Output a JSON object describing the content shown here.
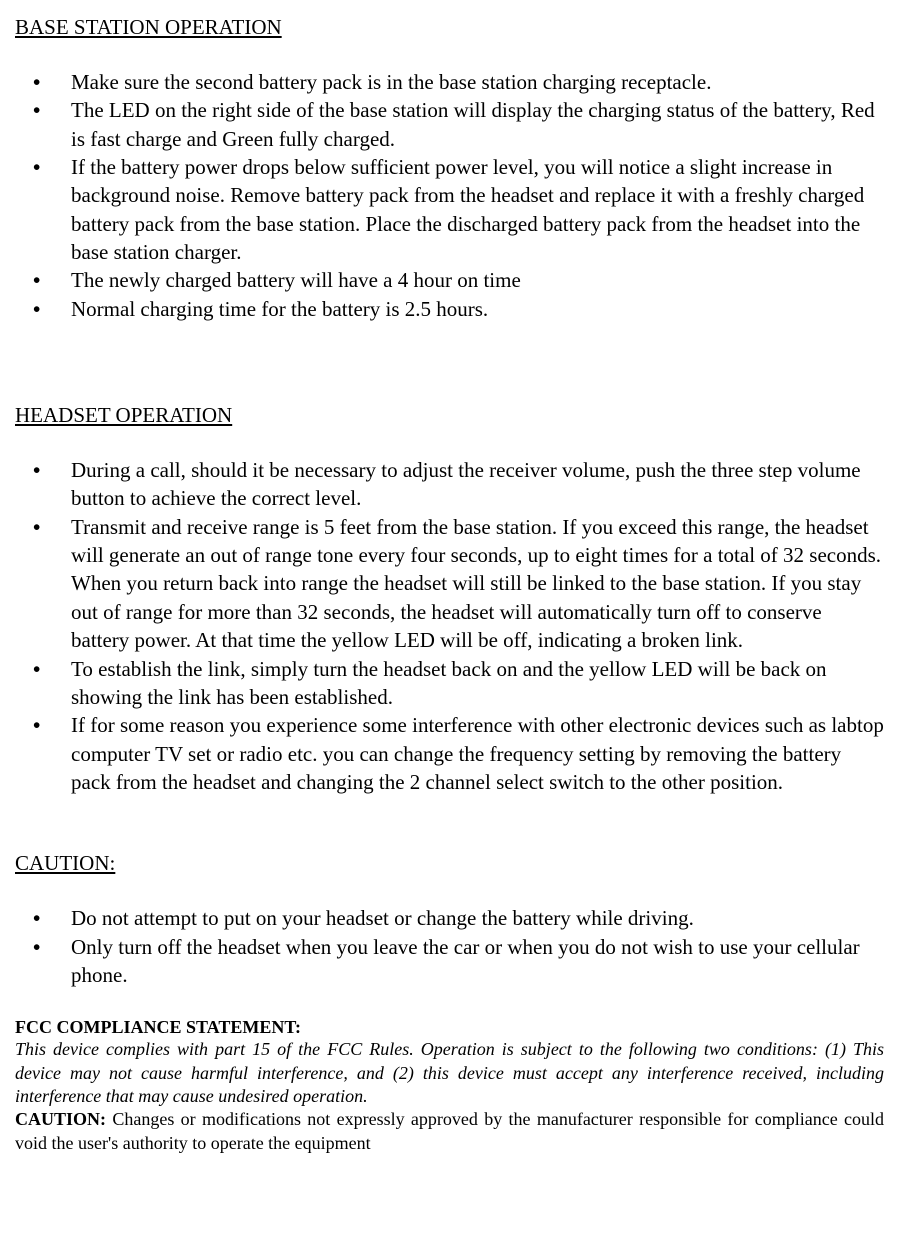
{
  "sections": {
    "baseStation": {
      "heading": "BASE STATION OPERATION",
      "bullets": [
        "Make sure the second battery pack is in the base station charging receptacle.",
        "The LED on the right side of the base station will display the charging status of the battery, Red is fast charge and Green fully charged.",
        "If the battery power drops below sufficient power level,  you will notice a slight increase in background noise.  Remove battery pack from the headset and replace it with a freshly charged battery pack from the base station.   Place the discharged battery pack from the headset into the base station charger.",
        "The newly charged battery will have a 4 hour on time",
        "Normal charging time for the battery is 2.5 hours."
      ]
    },
    "headset": {
      "heading": "HEADSET OPERATION",
      "bullets": [
        "During a call, should it be necessary to adjust the receiver volume, push the three step volume button to achieve the correct level.",
        "Transmit and receive range is 5 feet from the base station.  If you exceed this range, the headset will generate an out of range tone every four seconds, up to eight times for a total of 32 seconds.  When you return back into range the headset will still be linked to the base station.  If you stay out of range for more than 32 seconds,  the headset will automatically turn off to conserve battery power.  At that time the yellow LED will be off, indicating a broken link.",
        "To establish the link, simply turn the headset back on and the yellow LED will be back on showing the link has been established.",
        "If for some reason you experience some interference with other electronic devices such as labtop computer TV set or radio etc.  you can change the frequency setting by removing the battery pack from the headset and changing the 2 channel select switch to the other position."
      ]
    },
    "caution": {
      "heading": "CAUTION:",
      "bullets": [
        "Do not attempt to put on your headset or change the battery while driving.",
        "Only turn off the headset when you leave the car or when you do not wish to use your cellular phone."
      ]
    },
    "fcc": {
      "heading": "FCC COMPLIANCE STATEMENT:",
      "italicText": "This device complies with part 15 of the FCC Rules. Operation is subject to the following two conditions: (1) This device may not cause harmful interference, and (2) this device must accept any interference received, including interference that may cause undesired operation.",
      "cautionLabel": "CAUTION:",
      "cautionText": " Changes or modifications not expressly approved by the manufacturer responsible for compliance could void the user's authority to operate the equipment"
    }
  },
  "styling": {
    "bodyFontFamily": "Times New Roman",
    "bodyFontSize": 21,
    "fccFontSize": 18,
    "backgroundColor": "#ffffff",
    "textColor": "#000000",
    "pageWidth": 899
  }
}
